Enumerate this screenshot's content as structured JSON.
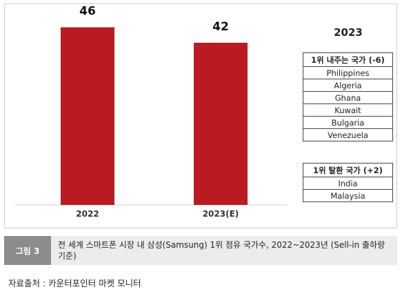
{
  "chart_data": {
    "type": "bar",
    "categories": [
      "2022",
      "2023(E)"
    ],
    "values": [
      46,
      42
    ],
    "ylim": [
      0,
      52
    ],
    "bar_color": "#b81c22",
    "grid": false,
    "legend": "none"
  },
  "panel": {
    "year": "2023",
    "lost": {
      "header": "1위 내주는 국가 (-6)",
      "countries": [
        "Philippines",
        "Algeria",
        "Ghana",
        "Kuwait",
        "Bulgaria",
        "Venezuela"
      ]
    },
    "gained": {
      "header": "1위 탈환 국가 (+2)",
      "countries": [
        "India",
        "Malaysia"
      ]
    }
  },
  "caption": {
    "tag": "그림 3",
    "text": "전 세계 스마트폰 시장 내 삼성(Samsung) 1위 점유 국가수, 2022~2023년 (Sell-in 출하량 기준)"
  },
  "source": "자료출처 : 카운터포인터 마켓 모니터"
}
